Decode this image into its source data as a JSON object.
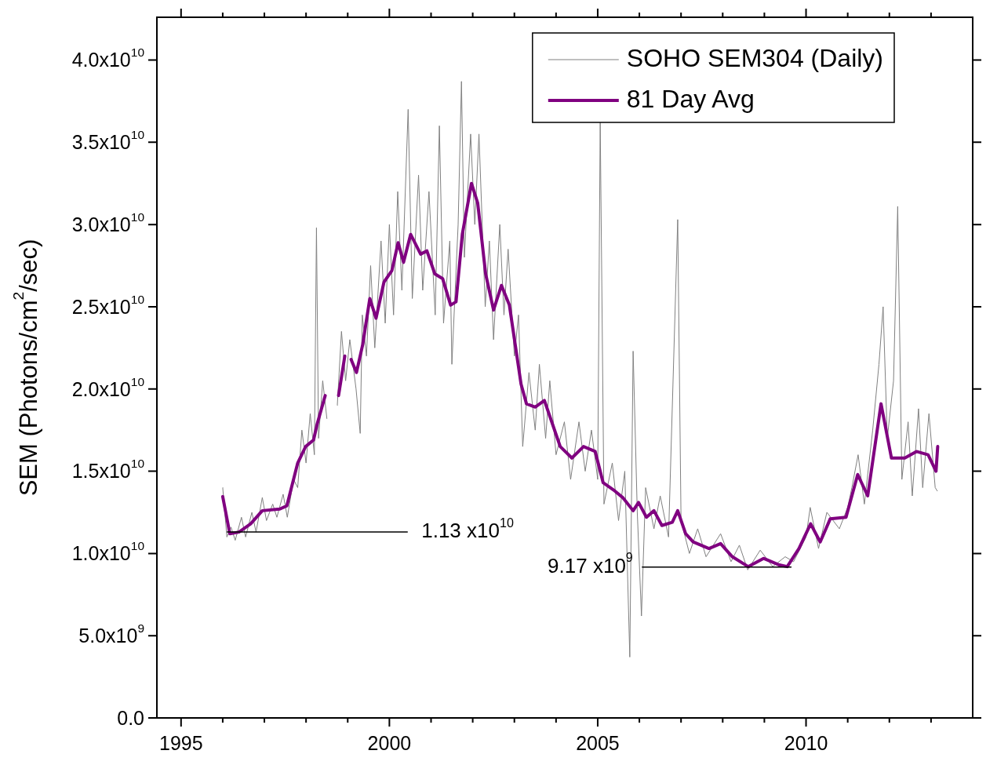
{
  "chart_data": {
    "type": "line",
    "xlabel": null,
    "ylabel": "SEM (Photons/cm$^{2}$/sec)",
    "xlim": [
      1994.42,
      2014
    ],
    "xticks": [
      1995,
      {
        "value": 1996,
        "label": null
      },
      {
        "value": 1997,
        "label": null
      },
      {
        "value": 1998,
        "label": null
      },
      {
        "value": 1999,
        "label": null
      },
      2000,
      {
        "value": 2001,
        "label": null
      },
      {
        "value": 2002,
        "label": null
      },
      {
        "value": 2003,
        "label": null
      },
      {
        "value": 2004,
        "label": null
      },
      2005,
      {
        "value": 2006,
        "label": null
      },
      {
        "value": 2007,
        "label": null
      },
      {
        "value": 2008,
        "label": null
      },
      {
        "value": 2009,
        "label": null
      },
      2010,
      {
        "value": 2011,
        "label": null
      },
      {
        "value": 2012,
        "label": null
      },
      {
        "value": 2013,
        "label": null
      }
    ],
    "ylim": [
      0,
      42600000000.0
    ],
    "yticks": [
      {
        "value": 0,
        "label": "0.0"
      },
      {
        "value": 5000000000.0,
        "label": "5.0x10$^{9}$"
      },
      {
        "value": 10000000000.0,
        "label": "1.0x10$^{10}$"
      },
      {
        "value": 15000000000.0,
        "label": "1.5x10$^{10}$"
      },
      {
        "value": 20000000000.0,
        "label": "2.0x10$^{10}$"
      },
      {
        "value": 25000000000.0,
        "label": "2.5x10$^{10}$"
      },
      {
        "value": 30000000000.0,
        "label": "3.0x10$^{10}$"
      },
      {
        "value": 35000000000.0,
        "label": "3.5x10$^{10}$"
      },
      {
        "value": 40000000000.0,
        "label": "4.0x10$^{10}$"
      }
    ],
    "legend": "top right",
    "marker": "none",
    "line_style": "solid",
    "series": [
      {
        "name": "SOHO SEM304 (Daily)",
        "color": "#808080",
        "x": [
          1996.0,
          1996.1,
          1996.2,
          1996.3,
          1996.45,
          1996.55,
          1996.7,
          1996.8,
          1996.95,
          1997.05,
          1997.2,
          1997.3,
          1997.45,
          1997.55,
          1997.7,
          1997.8,
          1997.9,
          1998.0,
          1998.1,
          1998.2,
          1998.25,
          1998.3,
          1998.4,
          1998.5,
          1998.6,
          1998.75,
          1998.85,
          1998.95,
          1999.05,
          1999.2,
          1999.3,
          1999.35,
          1999.45,
          1999.55,
          1999.65,
          1999.8,
          1999.9,
          2000.0,
          2000.1,
          2000.2,
          2000.3,
          2000.45,
          2000.55,
          2000.7,
          2000.8,
          2000.95,
          2001.1,
          2001.2,
          2001.3,
          2001.45,
          2001.5,
          2001.65,
          2001.73,
          2001.8,
          2001.95,
          2002.05,
          2002.15,
          2002.3,
          2002.4,
          2002.5,
          2002.65,
          2002.75,
          2002.85,
          2003.0,
          2003.1,
          2003.2,
          2003.35,
          2003.5,
          2003.6,
          2003.75,
          2003.85,
          2004.0,
          2004.2,
          2004.35,
          2004.55,
          2004.7,
          2004.85,
          2005.0,
          2005.06,
          2005.15,
          2005.35,
          2005.5,
          2005.65,
          2005.77,
          2005.85,
          2005.95,
          2006.05,
          2006.15,
          2006.35,
          2006.5,
          2006.7,
          2006.92,
          2007.0,
          2007.2,
          2007.4,
          2007.6,
          2007.95,
          2008.2,
          2008.4,
          2008.6,
          2008.9,
          2009.2,
          2009.5,
          2009.7,
          2010.0,
          2010.1,
          2010.3,
          2010.5,
          2010.8,
          2011.0,
          2011.1,
          2011.25,
          2011.4,
          2011.6,
          2011.75,
          2011.85,
          2011.95,
          2012.1,
          2012.2,
          2012.3,
          2012.45,
          2012.55,
          2012.7,
          2012.8,
          2012.95,
          2013.1,
          2013.15
        ],
        "values": [
          14000000000.0,
          11000000000.0,
          11600000000.0,
          10800000000.0,
          12200000000.0,
          11000000000.0,
          12500000000.0,
          11300000000.0,
          13400000000.0,
          12000000000.0,
          13000000000.0,
          12200000000.0,
          13600000000.0,
          12200000000.0,
          14500000000.0,
          14000000000.0,
          17500000000.0,
          15500000000.0,
          18500000000.0,
          16000000000.0,
          29800000000.0,
          17000000000.0,
          20500000000.0,
          18200000000.0,
          null,
          19000000000.0,
          23500000000.0,
          20500000000.0,
          23000000000.0,
          20000000000.0,
          17300000000.0,
          24500000000.0,
          22000000000.0,
          27500000000.0,
          22500000000.0,
          29000000000.0,
          24000000000.0,
          30000000000.0,
          24500000000.0,
          32000000000.0,
          26000000000.0,
          37000000000.0,
          25500000000.0,
          33000000000.0,
          26000000000.0,
          32000000000.0,
          24500000000.0,
          36000000000.0,
          24000000000.0,
          29000000000.0,
          21500000000.0,
          30000000000.0,
          38700000000.0,
          28000000000.0,
          35500000000.0,
          30000000000.0,
          35500000000.0,
          25000000000.0,
          29000000000.0,
          23000000000.0,
          30000000000.0,
          24500000000.0,
          28500000000.0,
          22000000000.0,
          24500000000.0,
          16500000000.0,
          21000000000.0,
          17500000000.0,
          21500000000.0,
          17000000000.0,
          20500000000.0,
          16000000000.0,
          18000000000.0,
          14500000000.0,
          18000000000.0,
          15000000000.0,
          17500000000.0,
          14500000000.0,
          36300000000.0,
          13000000000.0,
          15500000000.0,
          12000000000.0,
          15000000000.0,
          3700000000.0,
          22300000000.0,
          12500000000.0,
          6200000000.0,
          14000000000.0,
          11500000000.0,
          13500000000.0,
          11000000000.0,
          30300000000.0,
          12000000000.0,
          10000000000.0,
          11500000000.0,
          9800000000.0,
          11200000000.0,
          9500000000.0,
          10500000000.0,
          9000000000.0,
          10200000000.0,
          9200000000.0,
          9800000000.0,
          9500000000.0,
          11000000000.0,
          12800000000.0,
          10300000000.0,
          12500000000.0,
          11500000000.0,
          12800000000.0,
          14000000000.0,
          16000000000.0,
          13000000000.0,
          17500000000.0,
          21500000000.0,
          25000000000.0,
          17000000000.0,
          20500000000.0,
          31100000000.0,
          14500000000.0,
          18000000000.0,
          13500000000.0,
          18800000000.0,
          14000000000.0,
          18500000000.0,
          14000000000.0,
          13800000000.0
        ]
      },
      {
        "name": "81 Day Avg",
        "color": "#800080",
        "x": [
          1996.0,
          1996.17,
          1996.39,
          1996.67,
          1996.95,
          1997.37,
          1997.54,
          1997.8,
          1997.99,
          1998.18,
          1998.27,
          1998.46,
          1998.6,
          1998.78,
          1998.93,
          1999.0,
          1999.08,
          1999.21,
          1999.36,
          1999.53,
          1999.68,
          1999.87,
          2000.06,
          2000.21,
          2000.34,
          2000.51,
          2000.75,
          2000.9,
          2001.09,
          2001.28,
          2001.47,
          2001.6,
          2001.75,
          2001.97,
          2002.12,
          2002.31,
          2002.5,
          2002.69,
          2002.88,
          2003.16,
          2003.29,
          2003.5,
          2003.72,
          2003.91,
          2004.1,
          2004.38,
          2004.66,
          2004.94,
          2005.13,
          2005.41,
          2005.6,
          2005.85,
          2005.98,
          2006.17,
          2006.35,
          2006.54,
          2006.79,
          2006.92,
          2007.11,
          2007.29,
          2007.67,
          2007.95,
          2008.23,
          2008.61,
          2008.98,
          2009.36,
          2009.55,
          2009.83,
          2010.11,
          2010.34,
          2010.58,
          2010.96,
          2011.24,
          2011.48,
          2011.8,
          2012.05,
          2012.37,
          2012.65,
          2012.93,
          2013.12,
          2013.16
        ],
        "values": [
          13460000000.0,
          11200000000.0,
          11300000000.0,
          11800000000.0,
          12600000000.0,
          12700000000.0,
          12900000000.0,
          15500000000.0,
          16500000000.0,
          16900000000.0,
          17900000000.0,
          19600000000.0,
          null,
          19600000000.0,
          22000000000.0,
          null,
          21800000000.0,
          21000000000.0,
          22700000000.0,
          25500000000.0,
          24300000000.0,
          26500000000.0,
          27200000000.0,
          28900000000.0,
          27700000000.0,
          29400000000.0,
          28200000000.0,
          28400000000.0,
          27000000000.0,
          26700000000.0,
          25100000000.0,
          25300000000.0,
          29400000000.0,
          32500000000.0,
          31300000000.0,
          27000000000.0,
          24800000000.0,
          26300000000.0,
          25100000000.0,
          20300000000.0,
          19100000000.0,
          18900000000.0,
          19300000000.0,
          17900000000.0,
          16500000000.0,
          15800000000.0,
          16500000000.0,
          16200000000.0,
          14300000000.0,
          13800000000.0,
          13400000000.0,
          12600000000.0,
          13100000000.0,
          12200000000.0,
          12600000000.0,
          11700000000.0,
          11900000000.0,
          12600000000.0,
          11200000000.0,
          10700000000.0,
          10300000000.0,
          10600000000.0,
          9800000000.0,
          9200000000.0,
          9700000000.0,
          9300000000.0,
          9200000000.0,
          10300000000.0,
          11800000000.0,
          10700000000.0,
          12100000000.0,
          12200000000.0,
          14800000000.0,
          13500000000.0,
          19100000000.0,
          15800000000.0,
          15800000000.0,
          16200000000.0,
          16000000000.0,
          15000000000.0,
          16500000000.0
        ]
      },
      {
        "color": "#000000",
        "x": [
          1996.11,
          2000.43
        ],
        "values": [
          11300000000.0,
          11300000000.0
        ]
      },
      {
        "color": "#000000",
        "x": [
          2006.07,
          2009.64
        ],
        "values": [
          9170000000.0,
          9170000000.0
        ]
      }
    ],
    "annotations": [
      {
        "text": "1.13 x10$^{10}$",
        "x": 2000.43,
        "y": 11300000000.0
      },
      {
        "text": "9.17 x10$^{9}$",
        "x": 2006.07,
        "y": 9170000000.0
      }
    ]
  }
}
